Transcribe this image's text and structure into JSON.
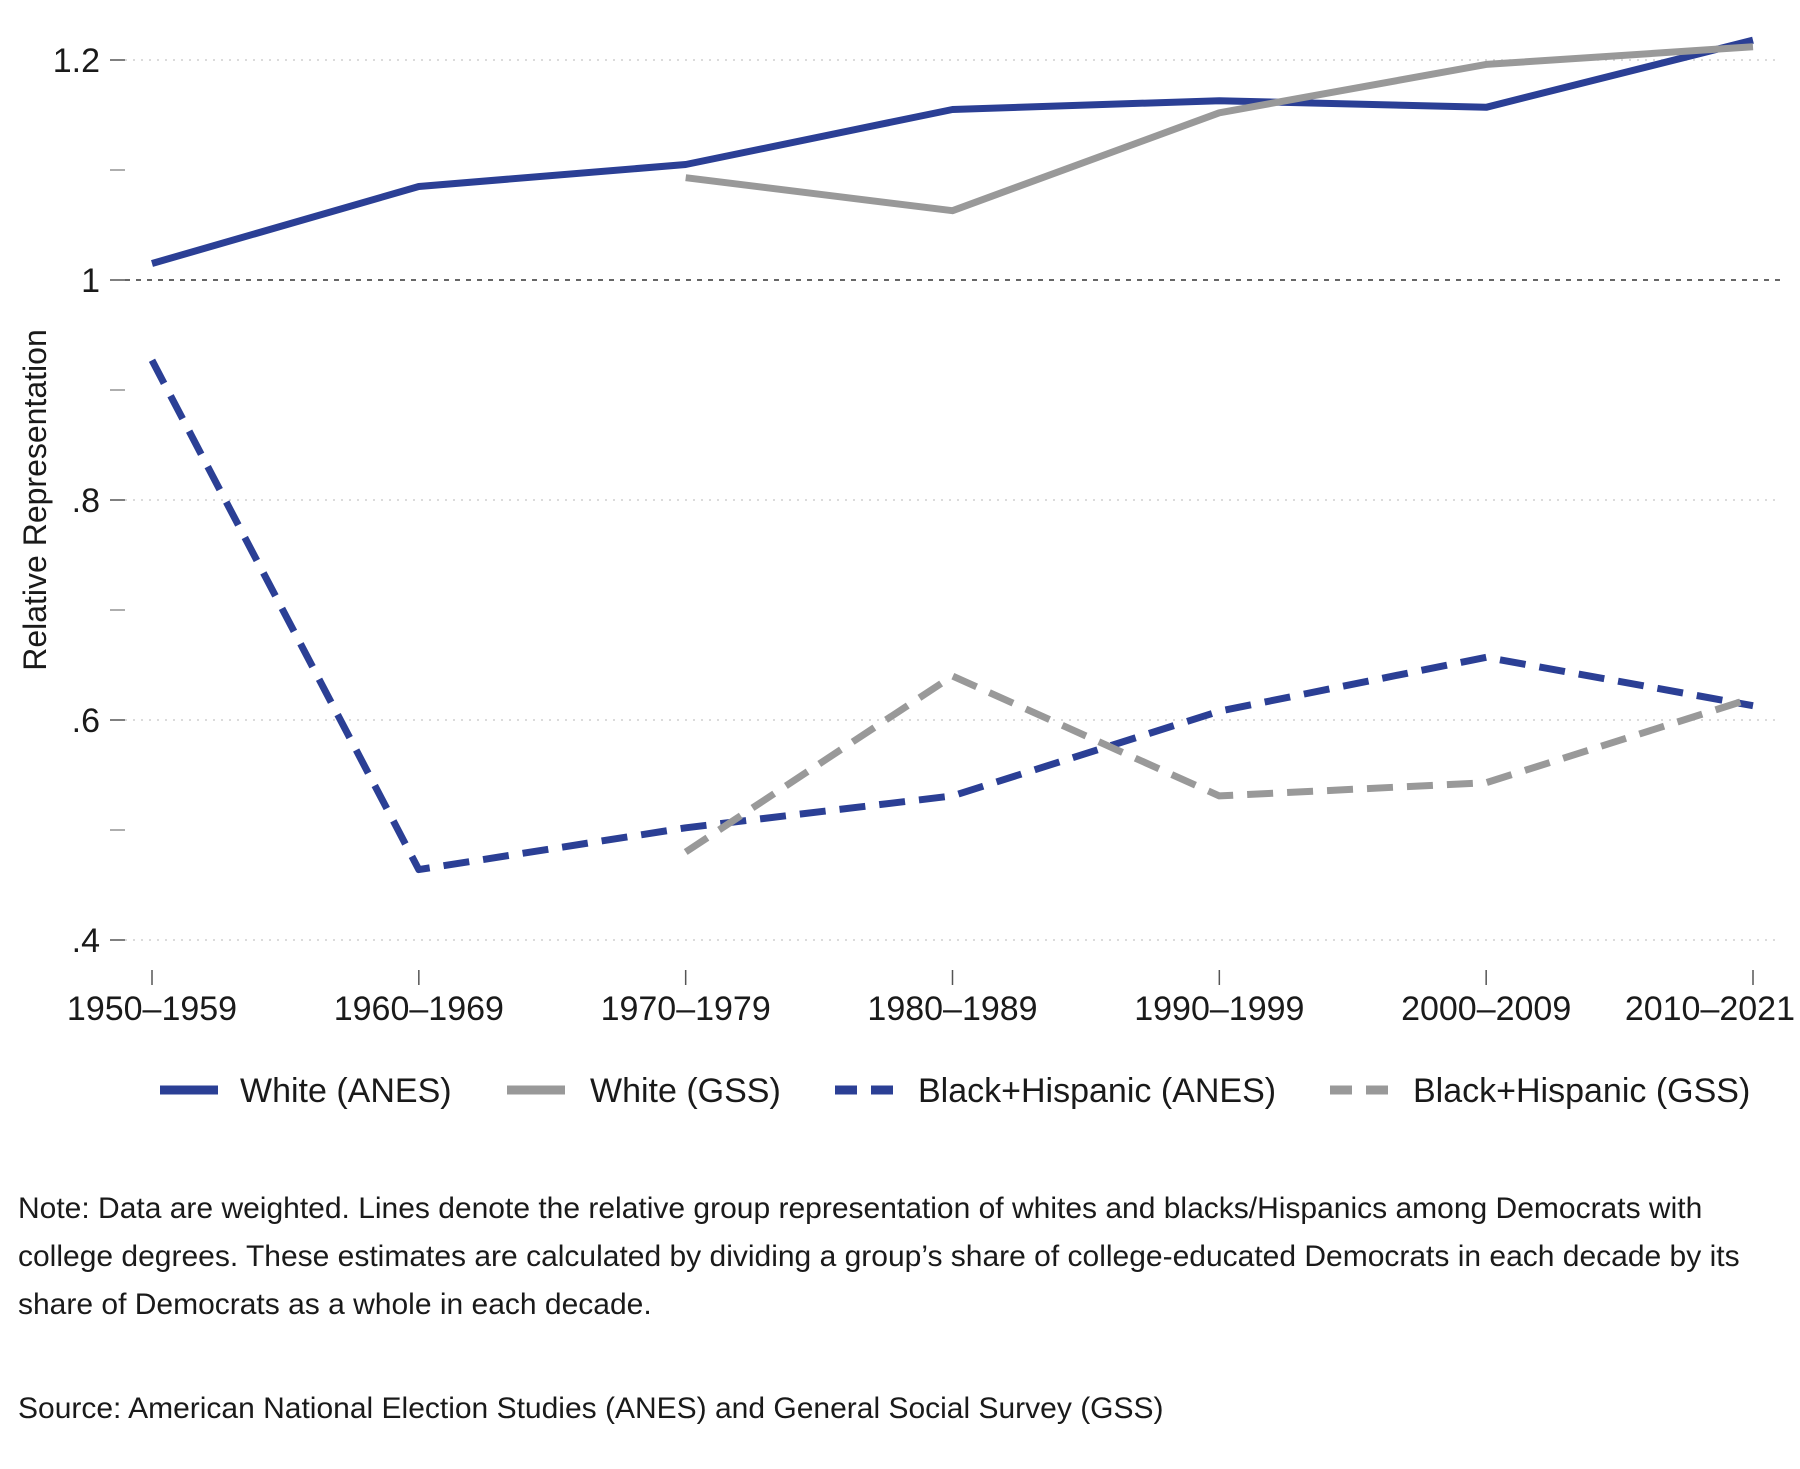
{
  "chart_data": {
    "type": "line",
    "categories": [
      "1950–1959",
      "1960–1969",
      "1970–1979",
      "1980–1989",
      "1990–1999",
      "2000–2009",
      "2010–2021"
    ],
    "ylabel": "Relative Representation",
    "ylim": [
      0.4,
      1.2
    ],
    "y_ticks": [
      {
        "value": 1.2,
        "label": "1.2"
      },
      {
        "value": 1.0,
        "label": "1"
      },
      {
        "value": 0.8,
        "label": ".8"
      },
      {
        "value": 0.6,
        "label": ".6"
      },
      {
        "value": 0.4,
        "label": ".4"
      }
    ],
    "y_minor_ticks": [
      1.1,
      0.9,
      0.7,
      0.5
    ],
    "grid": true,
    "reference_line": 1.0,
    "legend_position": "bottom",
    "series": [
      {
        "name": "White (ANES)",
        "color": "#2b3f95",
        "dashed": false,
        "values": [
          1.015,
          1.085,
          1.105,
          1.155,
          1.163,
          1.157,
          1.218
        ]
      },
      {
        "name": "White (GSS)",
        "color": "#999999",
        "dashed": false,
        "values": [
          null,
          null,
          1.093,
          1.063,
          1.152,
          1.196,
          1.212
        ]
      },
      {
        "name": "Black+Hispanic (ANES)",
        "color": "#2b3f95",
        "dashed": true,
        "values": [
          0.927,
          0.464,
          0.502,
          0.531,
          0.608,
          0.657,
          0.613
        ]
      },
      {
        "name": "Black+Hispanic (GSS)",
        "color": "#999999",
        "dashed": true,
        "values": [
          null,
          null,
          0.48,
          0.64,
          0.531,
          0.543,
          0.62
        ]
      }
    ]
  },
  "notes": {
    "note": "Note: Data are weighted. Lines denote the relative group representation of whites and blacks/Hispanics among Democrats with college degrees. These estimates are calculated by dividing a group’s share of college-educated Democrats in each decade by its share of Democrats as a whole in each decade.",
    "source": "Source: American National Election Studies (ANES) and General Social Survey (GSS)"
  }
}
